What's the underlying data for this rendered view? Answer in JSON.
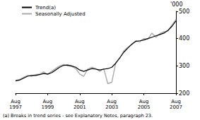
{
  "chart_data": {
    "type": "line",
    "ylabel": "'000",
    "footnote": "(a) Breaks in trend series - see Explanatory Notes, paragraph 23.",
    "categories": [
      "Aug 1997",
      null,
      null,
      null,
      null,
      null,
      null,
      null,
      "Aug 1999",
      null,
      null,
      null,
      null,
      null,
      null,
      null,
      "Aug 2001",
      null,
      null,
      null,
      null,
      null,
      null,
      null,
      "Aug 2003",
      null,
      null,
      null,
      null,
      null,
      null,
      null,
      "Aug 2005",
      null,
      null,
      null,
      null,
      null,
      null,
      null,
      "Aug 2007"
    ],
    "series": [
      {
        "name": "Trend(a)",
        "color": "#000000",
        "values": [
          245,
          248,
          255,
          262,
          265,
          265,
          268,
          272,
          270,
          275,
          285,
          295,
          302,
          303,
          300,
          295,
          285,
          280,
          285,
          290,
          288,
          285,
          288,
          290,
          295,
          310,
          330,
          350,
          365,
          380,
          390,
          392,
          395,
          400,
          405,
          410,
          415,
          420,
          430,
          445,
          465
        ]
      },
      {
        "name": "Seasonally Adjusted",
        "color": "#aaaaaa",
        "values": [
          247,
          250,
          258,
          265,
          262,
          268,
          270,
          278,
          268,
          280,
          290,
          300,
          305,
          300,
          298,
          290,
          270,
          262,
          288,
          295,
          290,
          280,
          290,
          235,
          240,
          312,
          328,
          355,
          368,
          378,
          392,
          388,
          400,
          398,
          420,
          405,
          418,
          425,
          428,
          450,
          470
        ]
      }
    ],
    "ylim": [
      200,
      500
    ],
    "yticks": [
      200,
      300,
      400,
      500
    ],
    "grid": false,
    "legend": "top-left"
  }
}
